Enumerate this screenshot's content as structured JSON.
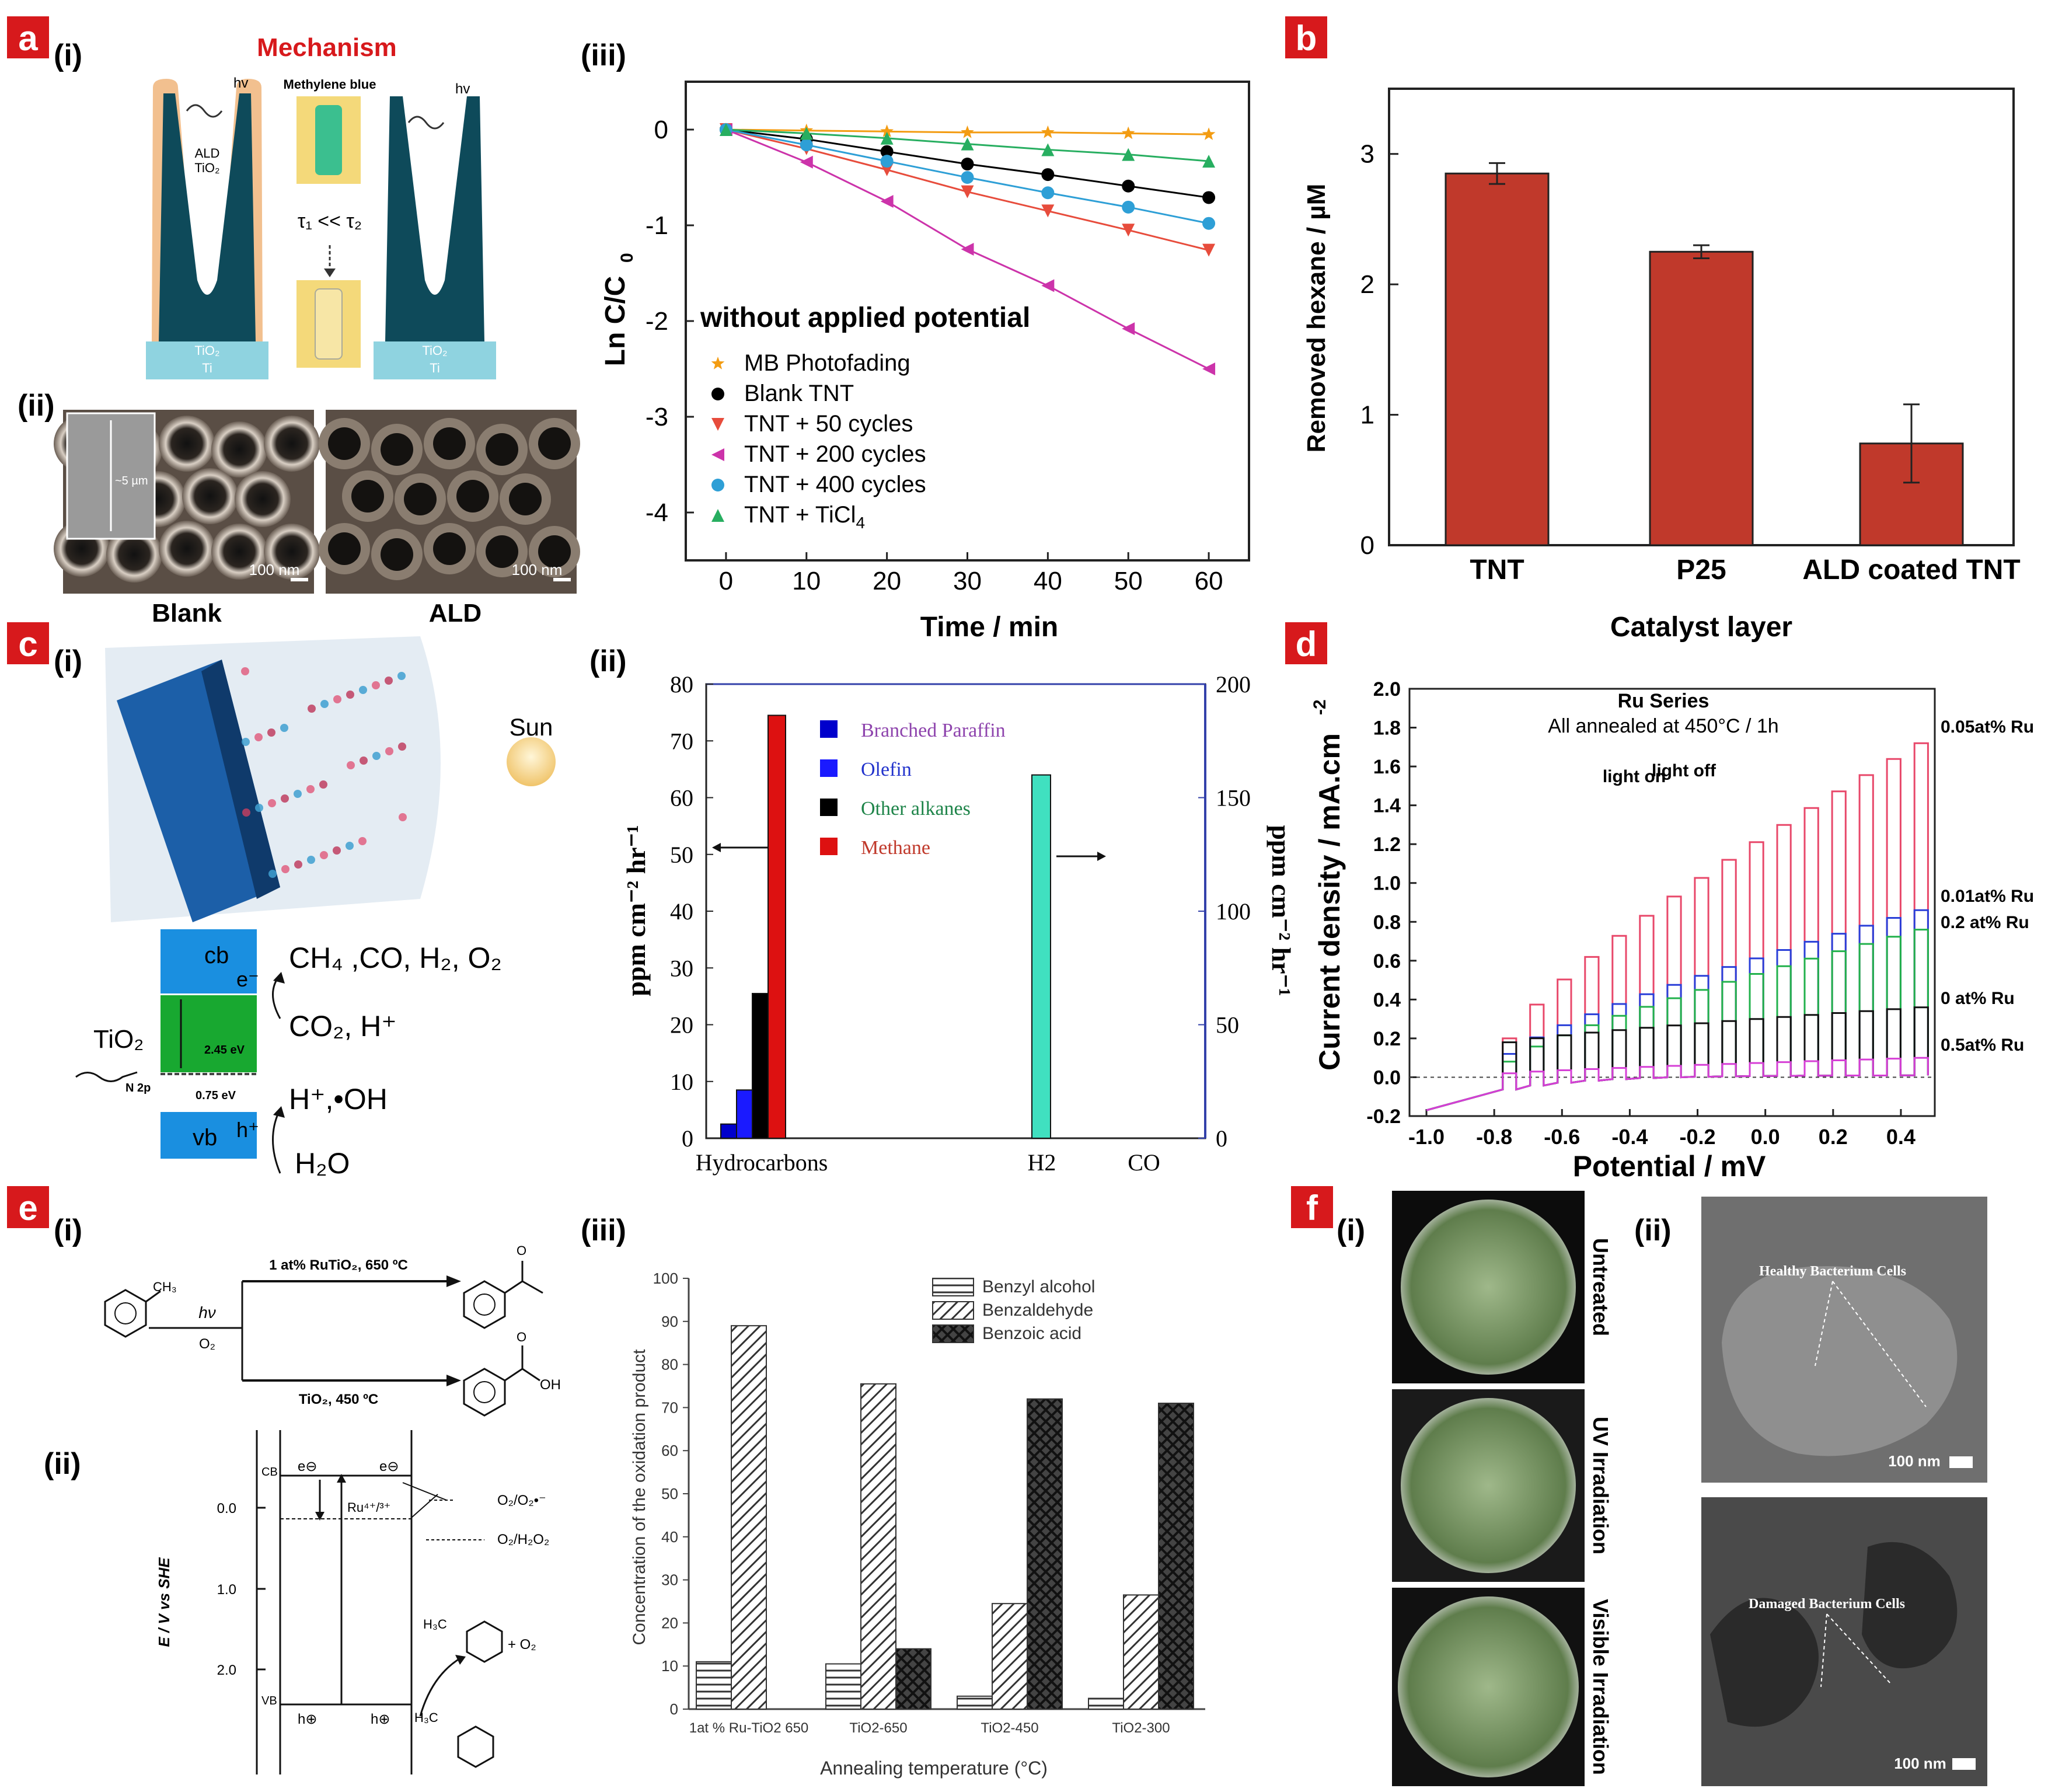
{
  "colors": {
    "panel_label_bg": "#d7191c",
    "mechanism_red": "#d7191c",
    "bar_red": "#c0392b",
    "tnt_teal": "#0e4a5a",
    "tio2_coat": "#f2c08f",
    "substrate": "#8fd3e0",
    "h2_teal": "#40e0c0"
  },
  "panel_labels": {
    "a": "a",
    "b": "b",
    "c": "c",
    "d": "d",
    "e": "e",
    "f": "f"
  },
  "panel_a": {
    "sub_i": "(i)",
    "sub_ii": "(ii)",
    "sub_iii": "(iii)",
    "mechanism_title": "Mechanism",
    "methylene_blue": "Methylene blue",
    "hv1": "hv",
    "hv2": "hv",
    "ald_label": "ALD",
    "ald_tio2": "TiO₂",
    "tau": "τ₁ << τ₂",
    "tio2_left": "TiO₂",
    "ti_left": "Ti",
    "tio2_right": "TiO₂",
    "ti_right": "Ti",
    "scale_5um": "~5 µm",
    "scale_100nm_1": "100 nm",
    "scale_100nm_2": "100 nm",
    "sem_blank": "Blank",
    "sem_ald": "ALD"
  },
  "panel_c": {
    "sub_i": "(i)",
    "sub_ii": "(ii)",
    "sun": "Sun",
    "cb": "cb",
    "vb": "vb",
    "e_minus": "e⁻",
    "h_plus": "h⁺",
    "tio2": "TiO₂",
    "gap": "2.45 eV",
    "n2p": "N 2p",
    "n2p_gap": "0.75 eV",
    "products": "CH₄ ,CO, H₂, O₂",
    "reactants": "CO₂, H⁺",
    "oxidation": "H⁺,•OH",
    "water": "H₂O"
  },
  "panel_e": {
    "sub_i": "(i)",
    "sub_ii": "(ii)",
    "sub_iii": "(iii)",
    "cond_top": "1 at% RuTiO₂, 650 ºC",
    "cond_bottom": "TiO₂, 450 ºC",
    "hv": "hν",
    "o2": "O₂",
    "ch3": "CH₃",
    "oh": "OH",
    "o_atom": "O",
    "yaxis": "E / V vs SHE",
    "ticks": [
      "0.0",
      "1.0",
      "2.0"
    ],
    "cb": "CB",
    "vb": "VB",
    "e1": "e⊖",
    "e2": "e⊖",
    "h1": "h⊕",
    "h2": "h⊕",
    "ru": "Ru⁴⁺/³⁺",
    "o2_o2": "O₂/O₂•⁻",
    "o2_h2o2": "O₂/H₂O₂",
    "h3c": "H₃C",
    "plus_o2": "+ O₂",
    "h3c2": "H₃C"
  },
  "panel_f": {
    "sub_i": "(i)",
    "sub_ii": "(ii)",
    "untreated": "Untreated",
    "uv": "UV Irradiation",
    "visible": "Visible Irradiation",
    "healthy": "Healthy Bacterium Cells",
    "damaged": "Damaged Bacterium Cells",
    "scale1": "100 nm",
    "scale2": "100 nm"
  },
  "chart_data": [
    {
      "id": "a_iii",
      "type": "line",
      "title": "",
      "annotation": "without applied potential",
      "xlabel": "Time / min",
      "ylabel": "Ln C/C",
      "ylabel_sub": "0",
      "xlim": [
        -5,
        65
      ],
      "ylim": [
        -4.5,
        0.5
      ],
      "xticks": [
        0,
        10,
        20,
        30,
        40,
        50,
        60
      ],
      "yticks": [
        0,
        -1,
        -2,
        -3,
        -4
      ],
      "x": [
        0,
        10,
        20,
        30,
        40,
        50,
        60
      ],
      "series": [
        {
          "name": "MB Photofading",
          "color": "#f39c12",
          "marker": "star",
          "values": [
            0,
            -0.01,
            -0.02,
            -0.03,
            -0.03,
            -0.04,
            -0.05
          ]
        },
        {
          "name": "Blank TNT",
          "color": "#000000",
          "marker": "circle",
          "values": [
            0,
            -0.1,
            -0.23,
            -0.36,
            -0.47,
            -0.59,
            -0.71
          ]
        },
        {
          "name": "TNT + 50 cycles",
          "color": "#e74c3c",
          "marker": "tri-down",
          "values": [
            0,
            -0.2,
            -0.42,
            -0.65,
            -0.85,
            -1.05,
            -1.26
          ]
        },
        {
          "name": "TNT + 200 cycles",
          "color": "#cc33aa",
          "marker": "tri-left",
          "values": [
            0,
            -0.34,
            -0.75,
            -1.25,
            -1.63,
            -2.08,
            -2.5
          ]
        },
        {
          "name": "TNT + 400 cycles",
          "color": "#2e9fd6",
          "marker": "circle",
          "values": [
            0,
            -0.16,
            -0.33,
            -0.5,
            -0.66,
            -0.81,
            -0.98
          ]
        },
        {
          "name": "TNT + TiCl",
          "name_sub": "4",
          "color": "#27ae60",
          "marker": "tri-up",
          "values": [
            0,
            -0.04,
            -0.09,
            -0.15,
            -0.21,
            -0.26,
            -0.33
          ]
        }
      ]
    },
    {
      "id": "b",
      "type": "bar",
      "title": "",
      "xlabel": "Catalyst layer",
      "ylabel": "Removed hexane / µM",
      "ylim": [
        0,
        3.5
      ],
      "yticks": [
        0,
        1,
        2,
        3
      ],
      "categories": [
        "TNT",
        "P25",
        "ALD coated TNT"
      ],
      "values": [
        2.85,
        2.25,
        0.78
      ],
      "errors": [
        0.08,
        0.05,
        0.3
      ]
    },
    {
      "id": "c_ii",
      "type": "bar",
      "title": "",
      "ylabel": "ppm cm⁻² hr⁻¹",
      "ylabel_right": "ppm cm⁻² hr⁻¹",
      "ylim": [
        0,
        80
      ],
      "ylim_right": [
        0,
        200
      ],
      "yticks": [
        0,
        10,
        20,
        30,
        40,
        50,
        60,
        70,
        80
      ],
      "yticks_right": [
        0,
        50,
        100,
        150,
        200
      ],
      "categories": [
        "Hydrocarbons",
        "H2",
        "CO"
      ],
      "series": [
        {
          "name": "Branched Paraffin",
          "color": "#0000cc",
          "text_color": "#8e44ad",
          "axis": "left",
          "values": [
            2.5,
            0,
            0
          ]
        },
        {
          "name": "Olefin",
          "color": "#1a1aff",
          "text_color": "#2233cc",
          "axis": "left",
          "values": [
            8.5,
            0,
            0
          ]
        },
        {
          "name": "Other alkanes",
          "color": "#000000",
          "text_color": "#1e8449",
          "axis": "left",
          "values": [
            25.5,
            0,
            0
          ]
        },
        {
          "name": "Methane",
          "color": "#dd1111",
          "text_color": "#c0392b",
          "axis": "left",
          "values": [
            74.5,
            0,
            0
          ]
        },
        {
          "name": "H2",
          "color": "#40e0c0",
          "axis": "right",
          "values": [
            0,
            160,
            0
          ]
        }
      ]
    },
    {
      "id": "d",
      "type": "line",
      "title": "Ru Series",
      "subtitle": "All annealed at 450°C / 1h",
      "annotation_on": "light on",
      "annotation_off": "light off",
      "xlabel": "Potential / mV",
      "ylabel": "Current density / mA.cm",
      "ylabel_sup": "-2",
      "xlim": [
        -1.05,
        0.5
      ],
      "ylim": [
        -0.2,
        2.0
      ],
      "xticks": [
        "-1.0",
        "-0.8",
        "-0.6",
        "-0.4",
        "-0.2",
        "0.0",
        "0.2",
        "0.4"
      ],
      "yticks": [
        "-0.2",
        "0.0",
        "0.2",
        "0.4",
        "0.6",
        "0.8",
        "1.0",
        "1.2",
        "1.4",
        "1.6",
        "1.8",
        "2.0"
      ],
      "series": [
        {
          "name": "0.05at% Ru",
          "color": "#e8486a",
          "peak_start": 0.2,
          "peak_end": 1.72
        },
        {
          "name": "0.01at% Ru",
          "color": "#2a3fd8",
          "peak_start": 0.12,
          "peak_end": 0.86
        },
        {
          "name": "0.2 at% Ru",
          "color": "#22b14c",
          "peak_start": 0.08,
          "peak_end": 0.76
        },
        {
          "name": "0 at% Ru",
          "color": "#111111",
          "peak_start": 0.18,
          "peak_end": 0.36
        },
        {
          "name": "0.5at% Ru",
          "color": "#d63fd6",
          "peak_start": 0.02,
          "peak_end": 0.1
        }
      ]
    },
    {
      "id": "e_iii",
      "type": "bar",
      "title": "",
      "xlabel": "Annealing temperature (°C)",
      "ylabel": "Concentration of the oxidation product",
      "ylim": [
        0,
        100
      ],
      "yticks": [
        0,
        10,
        20,
        30,
        40,
        50,
        60,
        70,
        80,
        90,
        100
      ],
      "categories": [
        "1at % Ru-TiO2 650",
        "TiO2-650",
        "TiO2-450",
        "TiO2-300"
      ],
      "series": [
        {
          "name": "Benzyl alcohol",
          "pattern": "hlines",
          "values": [
            11,
            10.5,
            3,
            2.5
          ]
        },
        {
          "name": "Benzaldehyde",
          "pattern": "diag",
          "values": [
            89,
            75.5,
            24.5,
            26.5
          ]
        },
        {
          "name": "Benzoic acid",
          "pattern": "cross",
          "values": [
            0,
            14,
            72,
            71
          ]
        }
      ]
    }
  ]
}
